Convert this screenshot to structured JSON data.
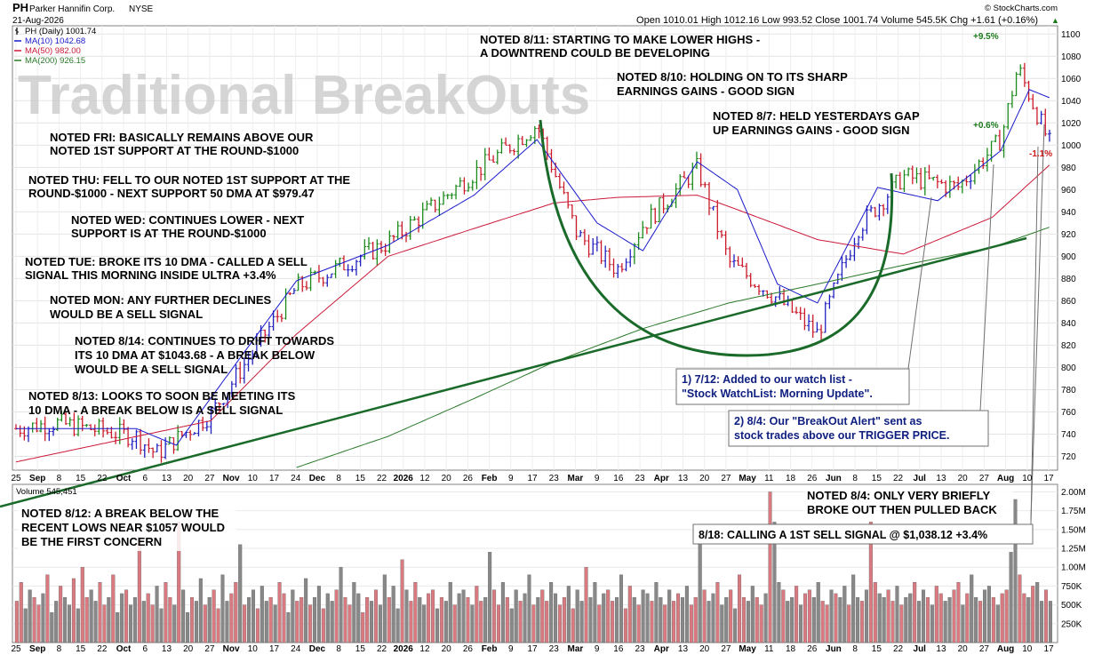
{
  "header": {
    "symbol": "PH",
    "company": "Parker Hannifin Corp.",
    "exchange": "NYSE",
    "date": "21-Aug-2026",
    "source": "© StockCharts.com",
    "quote": "Open 1010.01  High 1012.16  Low 993.52  Close 1001.74  Volume 545.5K  Chg +1.61 (+0.16%)",
    "up_arrow": "▲"
  },
  "legend": [
    {
      "label": "PH (Daily) 1001.74",
      "color": "#000000",
      "icon": "price-bar"
    },
    {
      "label": "MA(10) 1042.68",
      "color": "#1a1acc",
      "icon": "line"
    },
    {
      "label": "MA(50) 982.00",
      "color": "#cc1a3a",
      "icon": "line"
    },
    {
      "label": "MA(200) 926.15",
      "color": "#2a7a2a",
      "icon": "line"
    }
  ],
  "watermark": "Traditional BreakOuts",
  "volume_label": "Volume 545,451",
  "price_axis_ticks": [
    "1100",
    "1080",
    "1060",
    "1040",
    "1020",
    "1000",
    "980",
    "960",
    "940",
    "920",
    "900",
    "880",
    "860",
    "840",
    "820",
    "800",
    "780",
    "760",
    "740",
    "720"
  ],
  "volume_axis_ticks": [
    "2.00M",
    "1.75M",
    "1.50M",
    "1.25M",
    "1.00M",
    "750K",
    "500K",
    "250K"
  ],
  "x_axis_ticks": [
    "25",
    "Sep",
    "8",
    "15",
    "22",
    "Oct",
    "6",
    "13",
    "20",
    "27",
    "Nov",
    "10",
    "17",
    "24",
    "Dec",
    "8",
    "15",
    "22",
    "2026",
    "12",
    "20",
    "26",
    "Feb",
    "9",
    "17",
    "23",
    "Mar",
    "9",
    "16",
    "23",
    "Apr",
    "13",
    "20",
    "27",
    "May",
    "11",
    "18",
    "26",
    "Jun",
    "8",
    "15",
    "22",
    "Jul",
    "13",
    "20",
    "27",
    "Aug",
    "10",
    "17"
  ],
  "pct_labels": [
    {
      "text": "+9.5%",
      "color": "#1a7a1a"
    },
    {
      "text": "+0.6%",
      "color": "#1a7a1a"
    },
    {
      "text": "-1.1%",
      "color": "#cc1a1a"
    }
  ],
  "notes": [
    {
      "lines": [
        "NOTED 8/11: STARTING TO MAKE LOWER HIGHS -",
        "A DOWNTREND COULD BE DEVELOPING"
      ]
    },
    {
      "lines": [
        "NOTED 8/10: HOLDING ON TO ITS SHARP",
        "EARNINGS GAINS - GOOD SIGN"
      ]
    },
    {
      "lines": [
        "NOTED 8/7: HELD YESTERDAYS GAP",
        "UP EARNINGS GAINS - GOOD SIGN"
      ]
    },
    {
      "lines": [
        "NOTED FRI: BASICALLY REMAINS ABOVE OUR",
        "NOTED 1ST SUPPORT AT THE ROUND-$1000"
      ]
    },
    {
      "lines": [
        "NOTED THU: FELL TO OUR NOTED 1ST SUPPORT AT THE",
        "ROUND-$1000 - NEXT SUPPORT 50 DMA AT $979.47"
      ]
    },
    {
      "lines": [
        "NOTED WED: CONTINUES LOWER - NEXT",
        "SUPPORT IS AT THE ROUND-$1000"
      ]
    },
    {
      "lines": [
        "NOTED TUE: BROKE ITS 10 DMA - CALLED A SELL",
        "SIGNAL THIS MORNING INSIDE ULTRA +3.4%"
      ]
    },
    {
      "lines": [
        "NOTED MON: ANY FURTHER DECLINES",
        "WOULD BE A SELL SIGNAL"
      ]
    },
    {
      "lines": [
        "NOTED 8/14: CONTINUES TO DRIFT TOWARDS",
        "ITS 10 DMA AT $1043.68 - A BREAK BELOW",
        "WOULD BE A SELL SIGNAL"
      ]
    },
    {
      "lines": [
        "NOTED 8/13: LOOKS TO SOON BE MEETING ITS",
        "10 DMA - A BREAK BELOW IS A SELL SIGNAL"
      ]
    },
    {
      "lines": [
        "NOTED 8/12: A BREAK BELOW THE",
        "RECENT LOWS NEAR $1057 WOULD",
        "BE THE FIRST CONCERN"
      ]
    },
    {
      "lines": [
        "NOTED 8/4: ONLY VERY BRIEFLY",
        "BROKE OUT THEN PULLED BACK"
      ]
    }
  ],
  "boxes": [
    {
      "lines": [
        "1) 7/12: Added to our watch list -",
        "\"Stock WatchList: Morning Update\"."
      ]
    },
    {
      "lines": [
        "2) 8/4: Our \"BreakOut Alert\" sent as",
        "stock trades above our TRIGGER PRICE."
      ]
    },
    {
      "lines": [
        "8/18: CALLING A 1ST SELL SIGNAL @ $1,038.12  +3.4%"
      ]
    }
  ],
  "chart_data": {
    "type": "line",
    "y_range": [
      710,
      1105
    ],
    "volume_range": [
      0,
      2.1
    ],
    "series": [
      {
        "name": "PH (Daily)",
        "role": "price",
        "x": [
          "Aug 25",
          "Sep 8",
          "Oct 6",
          "Oct 13",
          "Nov 1",
          "Dec 1",
          "Jan 2",
          "Feb 1",
          "Feb 23",
          "Mar 9",
          "Mar 23",
          "Apr 1",
          "Apr 20",
          "May 1",
          "May 18",
          "Jun 1",
          "Jun 15",
          "Jul 1",
          "Jul 20",
          "Aug 4",
          "Aug 10",
          "Aug 21"
        ],
        "values": [
          745,
          750,
          738,
          722,
          758,
          872,
          912,
          975,
          1018,
          920,
          888,
          928,
          980,
          895,
          862,
          830,
          925,
          972,
          962,
          1005,
          1070,
          1001.74
        ]
      },
      {
        "name": "MA(10)",
        "role": "ma10",
        "x": [
          "Aug 25",
          "Oct 6",
          "Oct 20",
          "Dec 1",
          "Jan 2",
          "Feb 1",
          "Feb 23",
          "Mar 16",
          "Apr 1",
          "Apr 20",
          "May 4",
          "May 18",
          "Jun 1",
          "Jun 22",
          "Jul 13",
          "Aug 4",
          "Aug 14",
          "Aug 21"
        ],
        "values": [
          745,
          745,
          730,
          878,
          910,
          955,
          1005,
          930,
          905,
          985,
          960,
          875,
          858,
          962,
          950,
          995,
          1050,
          1042.68
        ]
      },
      {
        "name": "MA(50)",
        "role": "ma50",
        "x": [
          "Aug 25",
          "Nov 1",
          "Dec 1",
          "Jan 2",
          "Feb 1",
          "Mar 1",
          "Mar 23",
          "Apr 20",
          "May 4",
          "Jun 1",
          "Jul 1",
          "Aug 1",
          "Aug 21"
        ],
        "values": [
          715,
          752,
          830,
          900,
          925,
          948,
          953,
          955,
          942,
          915,
          902,
          935,
          982.0
        ]
      },
      {
        "name": "MA(200)",
        "role": "ma200",
        "x": [
          "Dec 1",
          "Jan 2",
          "Feb 1",
          "Mar 1",
          "Apr 1",
          "May 1",
          "Jun 1",
          "Jul 1",
          "Aug 1",
          "Aug 21"
        ],
        "values": [
          710,
          738,
          772,
          805,
          835,
          858,
          875,
          892,
          908,
          926.15
        ]
      }
    ],
    "volume_millions": [
      0.55,
      0.8,
      0.45,
      0.7,
      0.6,
      0.5,
      0.65,
      0.9,
      0.4,
      0.55,
      0.75,
      0.6,
      0.5,
      0.85,
      0.45,
      1.0,
      0.6,
      0.7,
      0.55,
      0.8,
      0.5,
      0.6,
      0.9,
      0.4,
      0.65,
      0.7,
      0.5,
      0.6,
      1.4,
      0.55,
      0.65,
      0.5,
      0.75,
      0.45,
      0.8,
      0.6,
      0.5,
      1.6,
      0.7,
      0.4,
      0.6,
      0.55,
      0.85,
      0.5,
      0.6,
      0.7,
      0.45,
      0.9,
      0.55,
      0.65,
      0.8,
      1.3,
      0.5,
      0.6,
      0.7,
      0.45,
      0.75,
      0.55,
      0.6,
      0.5,
      0.8,
      0.65,
      0.4,
      0.7,
      0.55,
      0.6,
      0.85,
      0.5,
      0.6,
      0.75,
      0.45,
      0.65,
      0.55,
      0.7,
      1.0,
      0.6,
      0.5,
      0.8,
      0.65,
      0.4,
      0.6,
      0.55,
      0.7,
      0.5,
      0.9,
      0.6,
      0.75,
      0.45,
      1.1,
      0.7,
      0.55,
      0.8,
      0.6,
      0.5,
      0.65,
      0.7,
      0.45,
      0.6,
      0.55,
      0.8,
      0.5,
      0.65,
      0.7,
      0.6,
      0.5,
      0.75,
      0.55,
      0.6,
      1.2,
      0.7,
      0.5,
      0.8,
      0.6,
      0.45,
      0.7,
      0.55,
      0.65,
      0.9,
      0.5,
      0.6,
      0.7,
      0.55,
      0.8,
      0.65,
      0.5,
      0.6,
      0.75,
      0.45,
      0.7,
      0.55,
      1.0,
      0.6,
      0.8,
      0.5,
      0.65,
      0.7,
      0.55,
      0.6,
      0.9,
      0.45,
      0.75,
      0.6,
      0.5,
      0.7,
      0.65,
      0.55,
      0.8,
      0.6,
      0.5,
      0.7,
      0.55,
      0.65,
      0.6,
      0.75,
      0.5,
      0.6,
      1.3,
      0.7,
      0.55,
      0.65,
      0.8,
      0.5,
      0.6,
      0.7,
      0.45,
      0.9,
      0.6,
      0.55,
      0.75,
      0.6,
      0.5,
      0.65,
      2.0,
      1.6,
      0.8,
      0.7,
      0.55,
      0.6,
      0.75,
      0.5,
      0.65,
      0.7,
      0.6,
      0.8,
      0.55,
      0.5,
      0.7,
      0.65,
      0.6,
      0.75,
      0.5,
      0.9,
      0.6,
      0.55,
      0.7,
      1.6,
      0.8,
      0.65,
      0.6,
      0.7,
      0.55,
      0.75,
      0.5,
      0.6,
      0.65,
      0.8,
      0.55,
      0.7,
      0.6,
      0.5,
      0.75,
      0.65,
      0.55,
      0.6,
      0.7,
      0.8,
      0.5,
      0.65,
      0.9,
      0.6,
      0.55,
      0.7,
      0.75,
      0.6,
      0.5,
      0.65,
      0.7,
      1.2,
      1.9,
      0.9,
      0.65,
      0.6,
      0.75,
      0.8,
      0.55,
      0.7,
      0.55
    ]
  }
}
